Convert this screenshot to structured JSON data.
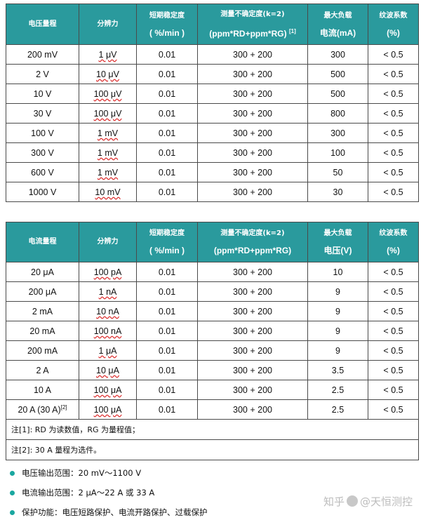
{
  "table1": {
    "headers": {
      "range": "电压量程",
      "resolution": "分辨力",
      "stability_l1": "短期稳定度",
      "stability_l2": "( %/min )",
      "uncert_l1": "测量不确定度(k=2)",
      "uncert_l2": "(ppm*RD+ppm*RG)",
      "uncert_sup": "[1]",
      "load_l1": "最大负载",
      "load_l2": "电流(mA)",
      "ripple_l1": "纹波系数",
      "ripple_l2": "(%)"
    },
    "rows": [
      [
        "200 mV",
        "1 μV",
        "0.01",
        "300 + 200",
        "300",
        "< 0.5"
      ],
      [
        "2 V",
        "10 μV",
        "0.01",
        "300 + 200",
        "500",
        "< 0.5"
      ],
      [
        "10 V",
        "100 μV",
        "0.01",
        "300 + 200",
        "500",
        "< 0.5"
      ],
      [
        "30 V",
        "100 μV",
        "0.01",
        "300 + 200",
        "800",
        "< 0.5"
      ],
      [
        "100 V",
        "1 mV",
        "0.01",
        "300 + 200",
        "300",
        "< 0.5"
      ],
      [
        "300 V",
        "1 mV",
        "0.01",
        "300 + 200",
        "100",
        "< 0.5"
      ],
      [
        "600 V",
        "1 mV",
        "0.01",
        "300 + 200",
        "50",
        "< 0.5"
      ],
      [
        "1000 V",
        "10 mV",
        "0.01",
        "300 + 200",
        "30",
        "< 0.5"
      ]
    ]
  },
  "table2": {
    "headers": {
      "range": "电流量程",
      "resolution": "分辨力",
      "stability_l1": "短期稳定度",
      "stability_l2": "( %/min )",
      "uncert_l1": "测量不确定度(k=2)",
      "uncert_l2": "(ppm*RD+ppm*RG)",
      "load_l1": "最大负载",
      "load_l2": "电压(V)",
      "ripple_l1": "纹波系数",
      "ripple_l2": "(%)"
    },
    "rows": [
      [
        "20 μA",
        "100 pA",
        "0.01",
        "300 + 200",
        "10",
        "< 0.5"
      ],
      [
        "200 μA",
        "1 nA",
        "0.01",
        "300 + 200",
        "9",
        "< 0.5"
      ],
      [
        "2 mA",
        "10 nA",
        "0.01",
        "300 + 200",
        "9",
        "< 0.5"
      ],
      [
        "20 mA",
        "100 nA",
        "0.01",
        "300 + 200",
        "9",
        "< 0.5"
      ],
      [
        "200 mA",
        "1 μA",
        "0.01",
        "300 + 200",
        "9",
        "< 0.5"
      ],
      [
        "2 A",
        "10 μA",
        "0.01",
        "300 + 200",
        "3.5",
        "< 0.5"
      ],
      [
        "10 A",
        "100 μA",
        "0.01",
        "300 + 200",
        "2.5",
        "< 0.5"
      ],
      [
        "20 A (30 A)",
        "100 μA",
        "0.01",
        "300 + 200",
        "2.5",
        "< 0.5"
      ]
    ],
    "last_row_sup": "[2]",
    "notes": [
      "注[1]: RD 为读数值，RG 为量程值；",
      "注[2]: 30 A 量程为选件。"
    ]
  },
  "features": [
    "电压输出范围：20 mV～1100 V",
    "电流输出范围：2 μA～22 A 或 33 A",
    "保护功能：电压短路保护、电流开路保护、过载保护"
  ],
  "watermark": {
    "site": "知乎",
    "author": "@天恒测控"
  },
  "colors": {
    "header_bg": "#2a9a9d",
    "bullet": "#1aa7a0"
  }
}
